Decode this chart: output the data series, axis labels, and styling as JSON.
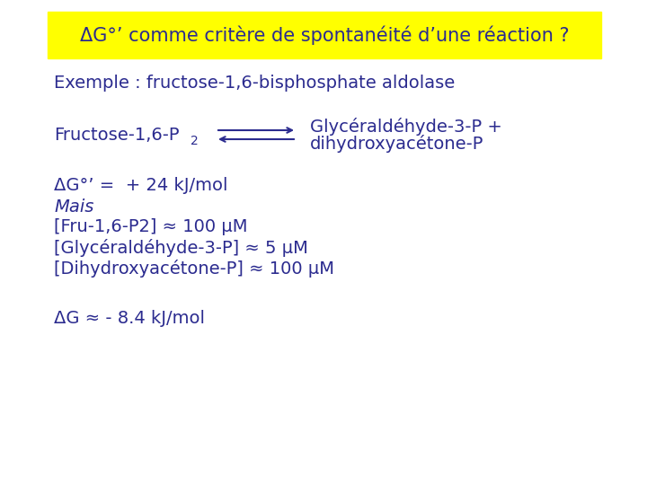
{
  "background_color": "#ffffff",
  "title_text": "ΔG°’ comme critère de spontanéité d’une réaction ?",
  "title_bg": "#ffff00",
  "title_color": "#2b2b8f",
  "text_color": "#2b2b8f",
  "font_family": "DejaVu Sans",
  "example_line": "Exemple : fructose-1,6-bisphosphate aldolase",
  "reactant": "Fructose-1,6-P",
  "reactant_sub": "2",
  "product_line1": "Glycéraldéhyde-3-P +",
  "product_line2": "dihydroxyacétone-P",
  "dG_std_line": "ΔG°’ =  + 24 kJ/mol",
  "mais_line": "Mais",
  "conc1": "[Fru-1,6-P2] ≈ 100 μM",
  "conc2": "[Glycéraldéhyde-3-P] ≈ 5 μM",
  "conc3": "[Dihydroxyacétone-P] ≈ 100 μM",
  "dG_line": "ΔG ≈ - 8.4 kJ/mol",
  "font_size_title": 15,
  "font_size_main": 14,
  "font_size_sub": 10
}
